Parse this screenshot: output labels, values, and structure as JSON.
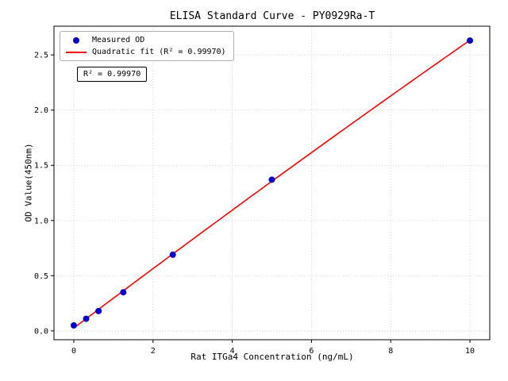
{
  "chart_data": {
    "type": "scatter",
    "title": "ELISA Standard Curve - PY0929Ra-T",
    "xlabel": "Rat ITGa4 Concentration (ng/mL)",
    "ylabel": "OD Value(450nm)",
    "x": [
      0,
      0.3125,
      0.625,
      1.25,
      2.5,
      5,
      10
    ],
    "y": [
      0.05,
      0.11,
      0.18,
      0.35,
      0.69,
      1.37,
      2.63
    ],
    "series": [
      {
        "name": "Measured OD",
        "kind": "scatter",
        "color": "#0000cd"
      },
      {
        "name": "Quadratic fit (R² = 0.99970)",
        "kind": "line",
        "color": "#ff0000"
      }
    ],
    "annotation": "R² = 0.99970",
    "x_ticks": {
      "values": [
        0,
        2,
        4,
        6,
        8,
        10
      ],
      "labels": [
        "0",
        "2",
        "4",
        "6",
        "8",
        "10"
      ]
    },
    "y_ticks": {
      "values": [
        0,
        0.5,
        1,
        1.5,
        2,
        2.5
      ],
      "labels": [
        "0.0",
        "0.5",
        "1.0",
        "1.5",
        "2.0",
        "2.5"
      ]
    },
    "xlim": [
      -0.5,
      10.5
    ],
    "ylim": [
      -0.08,
      2.76
    ],
    "grid": true,
    "legend_position": "upper left"
  }
}
